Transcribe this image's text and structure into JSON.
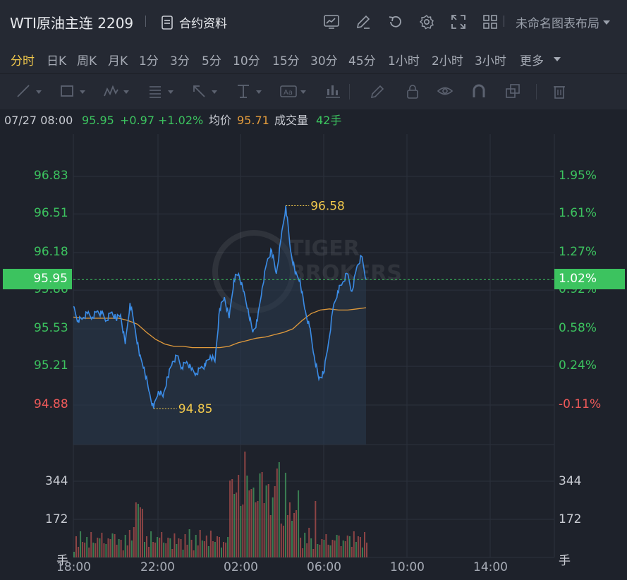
{
  "header": {
    "title": "WTI原油主连 2209",
    "contract_label": "合约资料",
    "layout_label": "未命名图表布局",
    "icons": [
      "chart-icon",
      "edit-icon",
      "undo-icon",
      "gear-icon",
      "fullscreen-icon",
      "grid-icon"
    ]
  },
  "periods": [
    "分时",
    "日K",
    "周K",
    "月K",
    "1分",
    "3分",
    "5分",
    "10分",
    "15分",
    "30分",
    "45分",
    "1小时",
    "2小时",
    "3小时",
    "更多"
  ],
  "active_period": "分时",
  "draw_tools": [
    "line-tool-icon",
    "rect-tool-icon",
    "wave-tool-icon",
    "fib-tool-icon",
    "arrow-tool-icon",
    "measure-tool-icon",
    "text-tool-icon",
    "candles-tool-icon",
    "pencil-icon",
    "lock-icon",
    "eye-icon",
    "magnet-icon",
    "clone-icon",
    "trash-icon"
  ],
  "info": {
    "time": "07/27 08:00",
    "price": "95.95",
    "change": "+0.97",
    "change_pct": "+1.02%",
    "avg_label": "均价",
    "avg_value": "95.71",
    "volume_label": "成交量",
    "volume_value": "42手"
  },
  "chart_data": {
    "type": "line",
    "price_ticks": [
      "96.83",
      "96.51",
      "96.18",
      "95.86",
      "95.53",
      "95.21",
      "94.88"
    ],
    "pct_ticks": [
      "1.95%",
      "1.61%",
      "1.27%",
      "0.92%",
      "0.58%",
      "0.24%",
      "-0.11%"
    ],
    "current_price": "95.95",
    "current_pct": "1.02%",
    "high_label": "96.58",
    "low_label": "94.85",
    "volume_ticks": [
      "344",
      "172",
      "手"
    ],
    "x_ticks": [
      "18:00",
      "22:00",
      "02:00",
      "06:00",
      "10:00",
      "14:00"
    ],
    "price_line": [
      95.72,
      95.6,
      95.62,
      95.66,
      95.63,
      95.68,
      95.66,
      95.6,
      95.67,
      95.62,
      95.65,
      95.4,
      95.75,
      95.55,
      95.3,
      95.2,
      95.0,
      94.85,
      95.0,
      94.95,
      95.12,
      95.25,
      95.3,
      95.2,
      95.25,
      95.18,
      95.15,
      95.2,
      95.22,
      95.3,
      95.25,
      95.7,
      95.8,
      95.62,
      95.95,
      96.0,
      95.85,
      95.7,
      95.5,
      95.6,
      95.88,
      96.1,
      96.2,
      96.0,
      96.3,
      96.58,
      96.2,
      96.0,
      95.95,
      95.7,
      95.55,
      95.3,
      95.1,
      95.15,
      95.4,
      95.7,
      95.85,
      95.92,
      96.0,
      95.85,
      96.05,
      96.15,
      95.95
    ],
    "avg_line": [
      95.63,
      95.62,
      95.62,
      95.62,
      95.62,
      95.62,
      95.6,
      95.57,
      95.5,
      95.44,
      95.4,
      95.38,
      95.38,
      95.37,
      95.37,
      95.37,
      95.37,
      95.38,
      95.41,
      95.43,
      95.45,
      95.46,
      95.48,
      95.5,
      95.53,
      95.6,
      95.66,
      95.69,
      95.7,
      95.69,
      95.69,
      95.7,
      95.71
    ]
  },
  "colors": {
    "up": "#3cc35f",
    "down": "#f05a5a",
    "accent": "#f2c94c",
    "price_line": "#3b8ce6",
    "avg_line": "#e09a3c"
  }
}
